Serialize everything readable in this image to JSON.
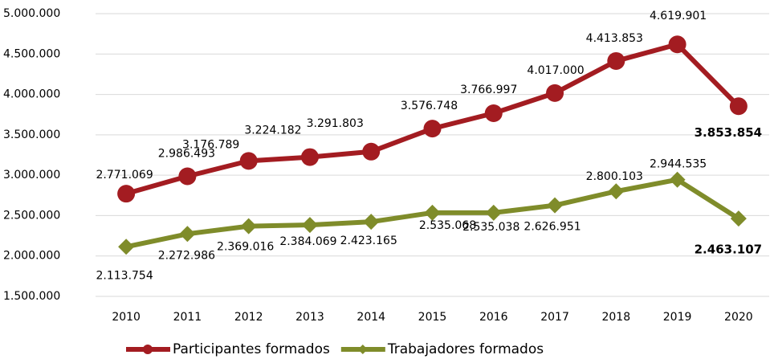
{
  "chart_data": {
    "type": "line",
    "categories": [
      "2010",
      "2011",
      "2012",
      "2013",
      "2014",
      "2015",
      "2016",
      "2017",
      "2018",
      "2019",
      "2020"
    ],
    "series": [
      {
        "name": "Participantes formados",
        "color": "#a31c21",
        "values": [
          2771069,
          2986493,
          3176789,
          3224182,
          3291803,
          3576748,
          3766997,
          4017000,
          4413853,
          4619901,
          3853854
        ],
        "value_labels": [
          "2.771.069",
          "2.986.493",
          "3.176.789",
          "3.224.182",
          "3.291.803",
          "3.576.748",
          "3.766.997",
          "4.017.000",
          "4.413.853",
          "4.619.901",
          "3.853.854"
        ]
      },
      {
        "name": "Trabajadores formados",
        "color": "#7f8c2a",
        "values": [
          2113754,
          2272986,
          2369016,
          2384069,
          2423165,
          2535068,
          2535038,
          2626951,
          2800103,
          2944535,
          2463107
        ],
        "value_labels": [
          "2.113.754",
          "2.272.986",
          "2.369.016",
          "2.384.069",
          "2.423.165",
          "2.535.068",
          "2.535.038",
          "2.626.951",
          "2.800.103",
          "2.944.535",
          "2.463.107"
        ]
      }
    ],
    "ylim": [
      1500000,
      5000000
    ],
    "yticks": [
      {
        "value": 1500000,
        "label": "1.500.000"
      },
      {
        "value": 2000000,
        "label": "2.000.000"
      },
      {
        "value": 2500000,
        "label": "2.500.000"
      },
      {
        "value": 3000000,
        "label": "3.000.000"
      },
      {
        "value": 3500000,
        "label": "3.500.000"
      },
      {
        "value": 4000000,
        "label": "4.000.000"
      },
      {
        "value": 4500000,
        "label": "4.500.000"
      },
      {
        "value": 5000000,
        "label": "5.000.000"
      }
    ],
    "grid": true,
    "legend": "bottom"
  }
}
